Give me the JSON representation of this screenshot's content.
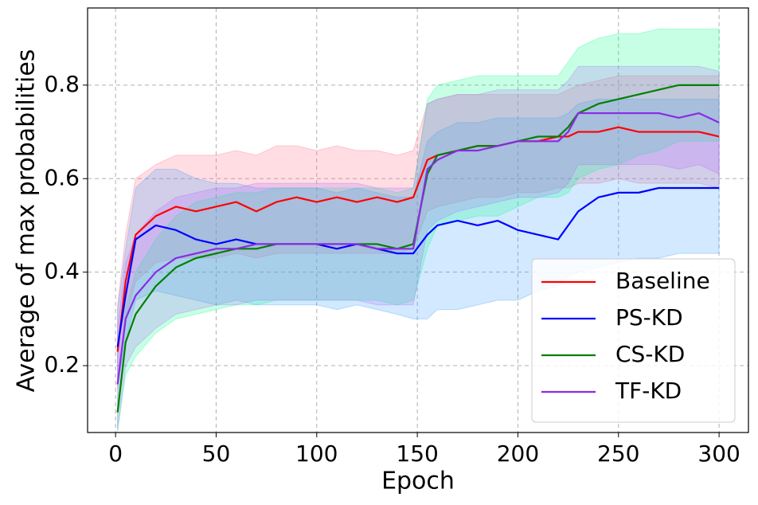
{
  "chart_data": {
    "type": "line",
    "xlabel": "Epoch",
    "ylabel": "Average of max probabilities",
    "xlim": [
      -13.9,
      314.6
    ],
    "ylim": [
      0.057,
      0.965
    ],
    "xticks": [
      0,
      50,
      100,
      150,
      200,
      250,
      300
    ],
    "yticks": [
      0.2,
      0.4,
      0.6,
      0.8
    ],
    "grid": true,
    "legend": "lower right",
    "x": [
      1,
      5,
      10,
      20,
      30,
      40,
      50,
      60,
      70,
      80,
      90,
      100,
      110,
      120,
      130,
      140,
      148,
      155,
      160,
      170,
      180,
      190,
      200,
      210,
      220,
      225,
      230,
      240,
      250,
      260,
      270,
      280,
      290,
      300
    ],
    "series": [
      {
        "name": "Baseline",
        "color": "#ff0000",
        "band_color": "#ff6680",
        "values": [
          0.23,
          0.38,
          0.48,
          0.52,
          0.54,
          0.53,
          0.54,
          0.55,
          0.53,
          0.55,
          0.56,
          0.55,
          0.56,
          0.55,
          0.56,
          0.55,
          0.56,
          0.64,
          0.65,
          0.66,
          0.67,
          0.67,
          0.68,
          0.68,
          0.69,
          0.69,
          0.7,
          0.7,
          0.71,
          0.7,
          0.7,
          0.7,
          0.7,
          0.69
        ],
        "upper": [
          0.33,
          0.48,
          0.6,
          0.63,
          0.65,
          0.65,
          0.65,
          0.66,
          0.65,
          0.67,
          0.67,
          0.66,
          0.67,
          0.66,
          0.66,
          0.65,
          0.66,
          0.76,
          0.77,
          0.78,
          0.78,
          0.78,
          0.78,
          0.78,
          0.78,
          0.79,
          0.8,
          0.81,
          0.82,
          0.82,
          0.82,
          0.82,
          0.82,
          0.82
        ],
        "lower": [
          0.15,
          0.3,
          0.38,
          0.42,
          0.43,
          0.43,
          0.43,
          0.44,
          0.43,
          0.44,
          0.44,
          0.44,
          0.44,
          0.44,
          0.44,
          0.44,
          0.45,
          0.53,
          0.54,
          0.55,
          0.56,
          0.56,
          0.57,
          0.57,
          0.58,
          0.58,
          0.59,
          0.59,
          0.6,
          0.59,
          0.59,
          0.59,
          0.59,
          0.58
        ]
      },
      {
        "name": "PS-KD",
        "color": "#0000ff",
        "band_color": "#3399ff",
        "values": [
          0.24,
          0.35,
          0.47,
          0.5,
          0.49,
          0.47,
          0.46,
          0.47,
          0.46,
          0.46,
          0.46,
          0.46,
          0.45,
          0.46,
          0.45,
          0.44,
          0.44,
          0.48,
          0.5,
          0.51,
          0.5,
          0.51,
          0.49,
          0.48,
          0.47,
          0.5,
          0.53,
          0.56,
          0.57,
          0.57,
          0.58,
          0.58,
          0.58,
          0.58
        ],
        "upper": [
          0.32,
          0.45,
          0.58,
          0.62,
          0.62,
          0.6,
          0.59,
          0.59,
          0.58,
          0.58,
          0.58,
          0.58,
          0.57,
          0.58,
          0.57,
          0.56,
          0.56,
          0.68,
          0.7,
          0.72,
          0.72,
          0.73,
          0.73,
          0.73,
          0.73,
          0.74,
          0.76,
          0.77,
          0.77,
          0.77,
          0.77,
          0.77,
          0.77,
          0.77
        ],
        "lower": [
          0.16,
          0.25,
          0.34,
          0.36,
          0.35,
          0.34,
          0.33,
          0.34,
          0.33,
          0.33,
          0.33,
          0.33,
          0.32,
          0.33,
          0.32,
          0.31,
          0.3,
          0.3,
          0.32,
          0.32,
          0.33,
          0.34,
          0.34,
          0.36,
          0.37,
          0.39,
          0.4,
          0.41,
          0.42,
          0.43,
          0.43,
          0.44,
          0.44,
          0.44
        ]
      },
      {
        "name": "CS-KD",
        "color": "#008000",
        "band_color": "#00ff88",
        "values": [
          0.1,
          0.25,
          0.31,
          0.37,
          0.41,
          0.43,
          0.44,
          0.45,
          0.45,
          0.46,
          0.46,
          0.46,
          0.46,
          0.46,
          0.46,
          0.45,
          0.46,
          0.61,
          0.65,
          0.66,
          0.67,
          0.67,
          0.68,
          0.69,
          0.69,
          0.71,
          0.74,
          0.76,
          0.77,
          0.78,
          0.79,
          0.8,
          0.8,
          0.8
        ],
        "upper": [
          0.14,
          0.32,
          0.4,
          0.47,
          0.52,
          0.55,
          0.56,
          0.57,
          0.57,
          0.58,
          0.58,
          0.58,
          0.58,
          0.58,
          0.58,
          0.57,
          0.58,
          0.77,
          0.8,
          0.81,
          0.82,
          0.82,
          0.82,
          0.82,
          0.82,
          0.85,
          0.88,
          0.9,
          0.91,
          0.91,
          0.92,
          0.92,
          0.92,
          0.92
        ],
        "lower": [
          0.06,
          0.18,
          0.22,
          0.27,
          0.3,
          0.31,
          0.32,
          0.33,
          0.33,
          0.34,
          0.34,
          0.34,
          0.34,
          0.34,
          0.34,
          0.33,
          0.34,
          0.45,
          0.5,
          0.51,
          0.52,
          0.52,
          0.54,
          0.56,
          0.56,
          0.57,
          0.6,
          0.62,
          0.63,
          0.65,
          0.66,
          0.68,
          0.68,
          0.68
        ]
      },
      {
        "name": "TF-KD",
        "color": "#8a2be2",
        "band_color": "#b366ff",
        "values": [
          0.16,
          0.3,
          0.35,
          0.4,
          0.43,
          0.44,
          0.45,
          0.45,
          0.46,
          0.46,
          0.46,
          0.46,
          0.46,
          0.46,
          0.45,
          0.45,
          0.45,
          0.62,
          0.64,
          0.66,
          0.66,
          0.67,
          0.68,
          0.68,
          0.68,
          0.7,
          0.74,
          0.74,
          0.74,
          0.74,
          0.74,
          0.73,
          0.74,
          0.72
        ],
        "upper": [
          0.28,
          0.42,
          0.48,
          0.53,
          0.56,
          0.57,
          0.58,
          0.58,
          0.59,
          0.59,
          0.59,
          0.59,
          0.59,
          0.59,
          0.58,
          0.58,
          0.58,
          0.76,
          0.77,
          0.78,
          0.78,
          0.79,
          0.79,
          0.79,
          0.79,
          0.81,
          0.84,
          0.84,
          0.84,
          0.84,
          0.84,
          0.84,
          0.84,
          0.83
        ],
        "lower": [
          0.06,
          0.2,
          0.24,
          0.28,
          0.31,
          0.32,
          0.33,
          0.33,
          0.34,
          0.34,
          0.34,
          0.34,
          0.34,
          0.34,
          0.33,
          0.33,
          0.33,
          0.49,
          0.51,
          0.53,
          0.54,
          0.55,
          0.56,
          0.56,
          0.57,
          0.59,
          0.63,
          0.63,
          0.63,
          0.63,
          0.63,
          0.62,
          0.63,
          0.61
        ]
      }
    ]
  }
}
